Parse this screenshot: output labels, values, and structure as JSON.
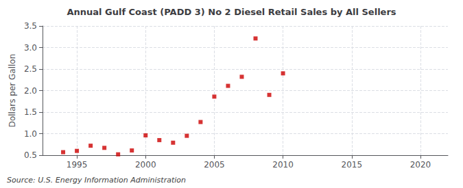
{
  "chart_data": {
    "type": "scatter",
    "title": "Annual Gulf Coast (PADD 3) No 2 Diesel Retail Sales by All Sellers",
    "ylabel": "Dollars per Gallon",
    "annotations": [
      "Source: U.S. Energy Information Administration"
    ],
    "x": [
      1994,
      1995,
      1996,
      1997,
      1998,
      1999,
      2000,
      2001,
      2002,
      2003,
      2004,
      2005,
      2006,
      2007,
      2008,
      2009,
      2010
    ],
    "values": [
      0.57,
      0.6,
      0.72,
      0.67,
      0.52,
      0.61,
      0.96,
      0.85,
      0.79,
      0.95,
      1.27,
      1.86,
      2.11,
      2.32,
      3.21,
      1.9,
      2.4
    ],
    "color": "#cc0000",
    "marker": "square",
    "xlim": [
      1992.5,
      2022
    ],
    "xticks": [
      1995,
      2000,
      2005,
      2010,
      2015,
      2020
    ],
    "ylim": [
      0.5,
      3.5
    ],
    "yticks": [
      0.5,
      {
        "value": 1.0,
        "label": "1.0"
      },
      1.5,
      {
        "value": 2.0,
        "label": "2.0"
      },
      2.5,
      {
        "value": 3.0,
        "label": "3.0"
      },
      3.5
    ],
    "grid": true
  }
}
